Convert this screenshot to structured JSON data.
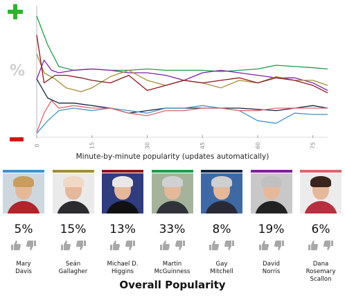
{
  "chart": {
    "xlabel": "Minute-by-minute popularity (updates automatically)",
    "x_ticks": [
      "0",
      "15",
      "30",
      "45",
      "60",
      "75"
    ],
    "percent_symbol": "%",
    "plus_icon": "plus-icon",
    "minus_icon": "minus-icon"
  },
  "chart_data": {
    "type": "line",
    "xlabel": "Minute-by-minute popularity (updates automatically)",
    "ylabel": "",
    "x_range": [
      0,
      79
    ],
    "x_ticks": [
      0,
      15,
      30,
      45,
      60,
      75
    ],
    "y_range": [
      0,
      100
    ],
    "grid": false,
    "series": [
      {
        "name": "Martin McGuinness",
        "color": "#1d9e4a",
        "x": [
          0,
          3,
          6,
          10,
          15,
          20,
          25,
          30,
          35,
          40,
          45,
          50,
          55,
          60,
          65,
          70,
          75,
          79
        ],
        "values": [
          95,
          72,
          55,
          52,
          53,
          52,
          52,
          53,
          52,
          52,
          52,
          51,
          52,
          53,
          56,
          55,
          54,
          53
        ]
      },
      {
        "name": "David Norris",
        "color": "#7e1fa8",
        "x": [
          0,
          2,
          4,
          6,
          10,
          15,
          20,
          25,
          30,
          35,
          40,
          45,
          50,
          55,
          60,
          65,
          70,
          75,
          79
        ],
        "values": [
          45,
          60,
          52,
          50,
          52,
          53,
          52,
          50,
          50,
          48,
          44,
          50,
          52,
          50,
          48,
          46,
          46,
          42,
          36
        ]
      },
      {
        "name": "Seán Gallagher",
        "color": "#a28d34",
        "x": [
          0,
          2,
          5,
          8,
          12,
          15,
          20,
          25,
          30,
          35,
          40,
          45,
          50,
          55,
          60,
          65,
          70,
          75,
          79
        ],
        "values": [
          65,
          50,
          45,
          38,
          35,
          38,
          47,
          52,
          44,
          40,
          44,
          42,
          38,
          44,
          42,
          47,
          44,
          44,
          40
        ]
      },
      {
        "name": "Michael D. Higgins",
        "color": "#8a1620",
        "x": [
          0,
          2,
          5,
          8,
          12,
          15,
          20,
          25,
          30,
          35,
          40,
          45,
          50,
          55,
          60,
          65,
          70,
          75,
          79
        ],
        "values": [
          80,
          42,
          48,
          48,
          46,
          44,
          42,
          48,
          36,
          40,
          44,
          42,
          44,
          46,
          42,
          46,
          44,
          40,
          34
        ]
      },
      {
        "name": "Gay Mitchell",
        "color": "#14243f",
        "x": [
          0,
          3,
          6,
          10,
          15,
          20,
          25,
          30,
          35,
          40,
          45,
          50,
          55,
          60,
          65,
          70,
          75,
          79
        ],
        "values": [
          45,
          30,
          26,
          26,
          24,
          22,
          18,
          20,
          22,
          22,
          22,
          22,
          22,
          21,
          20,
          22,
          24,
          22
        ]
      },
      {
        "name": "Mary Davis",
        "color": "#3e93c9",
        "x": [
          0,
          3,
          6,
          10,
          15,
          20,
          25,
          30,
          35,
          40,
          45,
          50,
          55,
          60,
          65,
          70,
          75,
          79
        ],
        "values": [
          2,
          12,
          20,
          22,
          20,
          22,
          20,
          18,
          22,
          22,
          24,
          22,
          20,
          12,
          10,
          18,
          17,
          17
        ]
      },
      {
        "name": "Dana Rosemary Scallon",
        "color": "#e0646a",
        "x": [
          0,
          2,
          4,
          6,
          10,
          15,
          20,
          25,
          30,
          35,
          40,
          45,
          50,
          55,
          60,
          65,
          70,
          75,
          79
        ],
        "values": [
          3,
          18,
          28,
          22,
          24,
          22,
          22,
          18,
          16,
          20,
          20,
          22,
          22,
          20,
          20,
          22,
          22,
          22,
          22
        ]
      }
    ]
  },
  "candidates": [
    {
      "first": "Mary",
      "last": "Davis",
      "pct": "5%",
      "color": "#3e93c9",
      "photo_bg": "#cdd8de",
      "hair": "#c99d5e",
      "body": "#b2232a"
    },
    {
      "first": "Seán",
      "last": "Gallagher",
      "pct": "15%",
      "color": "#a28d34",
      "photo_bg": "#eaeaea",
      "hair": "#f0d8c4",
      "body": "#2b2b30"
    },
    {
      "first": "Michael D.",
      "last": "Higgins",
      "pct": "13%",
      "color": "#8a1620",
      "photo_bg": "#2e3c80",
      "hair": "#e8e8e8",
      "body": "#111111"
    },
    {
      "first": "Martin",
      "last": "McGuinness",
      "pct": "33%",
      "color": "#1d9e4a",
      "photo_bg": "#a5b39a",
      "hair": "#d0d0d0",
      "body": "#30343a"
    },
    {
      "first": "Gay",
      "last": "Mitchell",
      "pct": "8%",
      "color": "#14243f",
      "photo_bg": "#3d6aa5",
      "hair": "#cfcfcf",
      "body": "#2a2a35"
    },
    {
      "first": "David",
      "last": "Norris",
      "pct": "19%",
      "color": "#7e1fa8",
      "photo_bg": "#c8c8c8",
      "hair": "#c0c0c0",
      "body": "#222222"
    },
    {
      "first": "Dana",
      "last": "Rosemary Scallon",
      "pct": "6%",
      "color": "#e0646a",
      "photo_bg": "#ececec",
      "hair": "#3a241c",
      "body": "#b83040"
    }
  ],
  "icons": {
    "thumb_up": "thumbs-up-icon",
    "thumb_down": "thumbs-down-icon"
  },
  "footer": {
    "title": "Overall Popularity"
  }
}
